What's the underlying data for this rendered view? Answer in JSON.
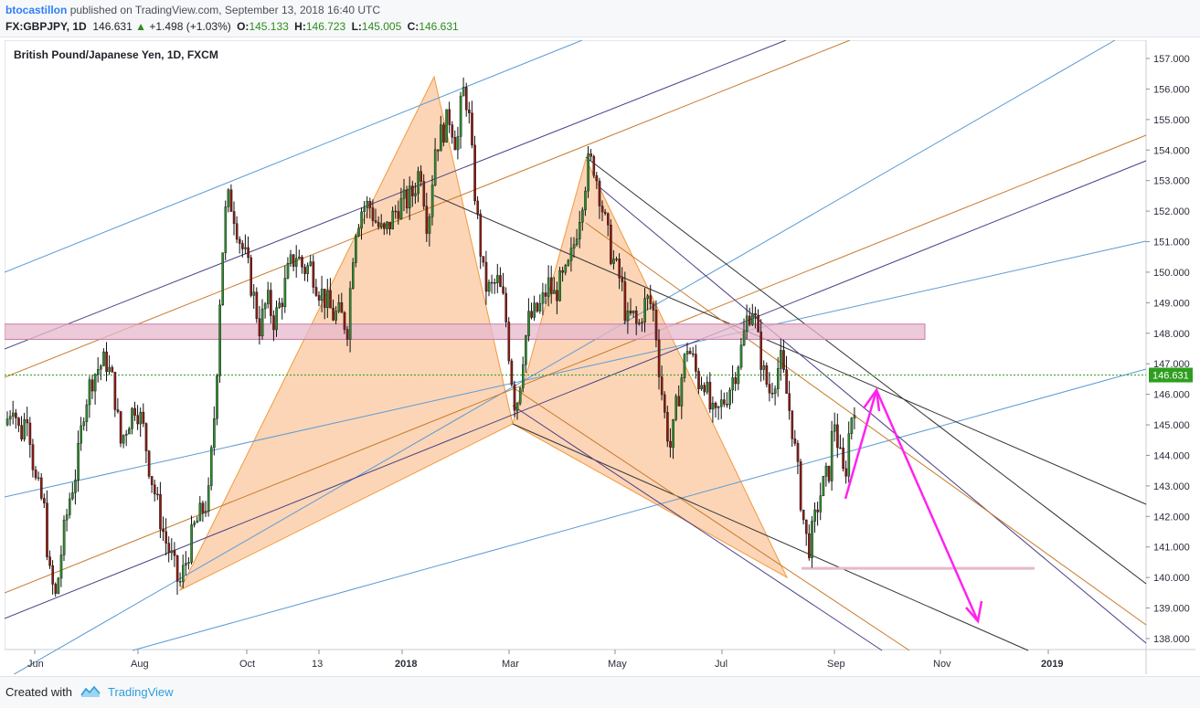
{
  "header": {
    "author": "btocastillon",
    "published_text": "published on TradingView.com, September 13, 2018 16:40 UTC",
    "symbol": "FX:GBPJPY, 1D",
    "last": "146.631",
    "change_arrow": "▲",
    "change": "+1.498 (+1.03%)",
    "open_label": "O:",
    "open": "145.133",
    "high_label": "H:",
    "high": "146.723",
    "low_label": "L:",
    "low": "145.005",
    "close_label": "C:",
    "close": "146.631"
  },
  "chart_data": {
    "type": "candlestick",
    "title": "British Pound/Japanese Yen, 1D, FXCM",
    "ylim": [
      137.6,
      157.3
    ],
    "y_ticks": [
      "157.000",
      "156.000",
      "155.000",
      "154.000",
      "153.000",
      "152.000",
      "151.000",
      "150.000",
      "149.000",
      "148.000",
      "147.000",
      "146.000",
      "145.000",
      "144.000",
      "143.000",
      "142.000",
      "141.000",
      "140.000",
      "139.000",
      "138.000"
    ],
    "x_ticks": [
      {
        "label": "Jun",
        "bold": false
      },
      {
        "label": "Aug",
        "bold": false
      },
      {
        "label": "Oct",
        "bold": false
      },
      {
        "label": "13",
        "bold": false
      },
      {
        "label": "2018",
        "bold": true
      },
      {
        "label": "Mar",
        "bold": false
      },
      {
        "label": "May",
        "bold": false
      },
      {
        "label": "Jul",
        "bold": false
      },
      {
        "label": "Sep",
        "bold": false
      },
      {
        "label": "Nov",
        "bold": false
      },
      {
        "label": "2019",
        "bold": true
      }
    ],
    "last_price_label": "146.631",
    "last_price": 146.631,
    "price_path": [
      [
        0,
        145.0
      ],
      [
        8,
        145.8
      ],
      [
        16,
        144.6
      ],
      [
        24,
        145.5
      ],
      [
        32,
        143.2
      ],
      [
        42,
        142.3
      ],
      [
        48,
        140.1
      ],
      [
        55,
        139.3
      ],
      [
        62,
        141.1
      ],
      [
        70,
        142.6
      ],
      [
        78,
        143.6
      ],
      [
        86,
        145.6
      ],
      [
        94,
        146.5
      ],
      [
        102,
        146.9
      ],
      [
        110,
        147.1
      ],
      [
        118,
        146.3
      ],
      [
        126,
        144.4
      ],
      [
        134,
        145.1
      ],
      [
        142,
        145.7
      ],
      [
        150,
        145.0
      ],
      [
        158,
        143.5
      ],
      [
        166,
        142.4
      ],
      [
        174,
        141.3
      ],
      [
        182,
        140.6
      ],
      [
        190,
        139.7
      ],
      [
        198,
        140.6
      ],
      [
        206,
        141.6
      ],
      [
        214,
        142.1
      ],
      [
        222,
        142.6
      ],
      [
        230,
        146.0
      ],
      [
        236,
        150.2
      ],
      [
        242,
        152.4
      ],
      [
        248,
        152.2
      ],
      [
        256,
        151.1
      ],
      [
        264,
        150.3
      ],
      [
        270,
        149.4
      ],
      [
        278,
        148.2
      ],
      [
        286,
        149.1
      ],
      [
        294,
        148.4
      ],
      [
        302,
        149.1
      ],
      [
        310,
        150.1
      ],
      [
        318,
        150.6
      ],
      [
        326,
        150.1
      ],
      [
        334,
        150.2
      ],
      [
        342,
        149.5
      ],
      [
        350,
        149.1
      ],
      [
        358,
        148.6
      ],
      [
        366,
        148.6
      ],
      [
        374,
        148.2
      ],
      [
        382,
        151.4
      ],
      [
        390,
        152.1
      ],
      [
        398,
        152.2
      ],
      [
        406,
        151.6
      ],
      [
        414,
        151.2
      ],
      [
        422,
        151.7
      ],
      [
        430,
        152.2
      ],
      [
        438,
        152.3
      ],
      [
        446,
        152.6
      ],
      [
        454,
        153.5
      ],
      [
        462,
        151.4
      ],
      [
        470,
        154.1
      ],
      [
        478,
        154.6
      ],
      [
        486,
        155.1
      ],
      [
        494,
        154.1
      ],
      [
        500,
        156.0
      ],
      [
        506,
        155.5
      ],
      [
        512,
        153.1
      ],
      [
        518,
        151.2
      ],
      [
        524,
        149.6
      ],
      [
        530,
        149.4
      ],
      [
        538,
        149.7
      ],
      [
        546,
        148.9
      ],
      [
        552,
        147.0
      ],
      [
        558,
        145.5
      ],
      [
        562,
        146.2
      ],
      [
        566,
        147.3
      ],
      [
        572,
        148.4
      ],
      [
        578,
        148.6
      ],
      [
        586,
        148.9
      ],
      [
        594,
        149.6
      ],
      [
        600,
        149.2
      ],
      [
        606,
        149.6
      ],
      [
        614,
        149.9
      ],
      [
        620,
        150.6
      ],
      [
        626,
        151.6
      ],
      [
        632,
        152.6
      ],
      [
        638,
        153.6
      ],
      [
        644,
        153.5
      ],
      [
        650,
        152.6
      ],
      [
        656,
        151.6
      ],
      [
        662,
        150.7
      ],
      [
        668,
        150.1
      ],
      [
        674,
        149.6
      ],
      [
        680,
        148.3
      ],
      [
        686,
        148.6
      ],
      [
        692,
        148.1
      ],
      [
        698,
        148.9
      ],
      [
        704,
        149.1
      ],
      [
        710,
        148.6
      ],
      [
        716,
        146.6
      ],
      [
        722,
        145.1
      ],
      [
        728,
        144.2
      ],
      [
        734,
        145.6
      ],
      [
        740,
        146.6
      ],
      [
        746,
        147.6
      ],
      [
        752,
        147.1
      ],
      [
        758,
        146.4
      ],
      [
        764,
        146.6
      ],
      [
        770,
        145.6
      ],
      [
        776,
        145.1
      ],
      [
        782,
        145.6
      ],
      [
        788,
        145.9
      ],
      [
        794,
        146.4
      ],
      [
        800,
        146.9
      ],
      [
        806,
        147.6
      ],
      [
        812,
        148.6
      ],
      [
        818,
        148.9
      ],
      [
        824,
        147.6
      ],
      [
        830,
        146.6
      ],
      [
        836,
        146.1
      ],
      [
        842,
        146.6
      ],
      [
        848,
        147.1
      ],
      [
        854,
        146.1
      ],
      [
        860,
        145.1
      ],
      [
        866,
        143.6
      ],
      [
        872,
        142.1
      ],
      [
        878,
        140.9
      ],
      [
        884,
        141.6
      ],
      [
        890,
        142.6
      ],
      [
        896,
        143.1
      ],
      [
        902,
        143.6
      ],
      [
        906,
        145.4
      ],
      [
        912,
        144.1
      ],
      [
        918,
        143.1
      ],
      [
        924,
        145.1
      ],
      [
        930,
        145.9
      ],
      [
        934,
        146.6
      ]
    ],
    "overlays": {
      "supply_zone_price": [
        147.8,
        148.3
      ],
      "support_zone_price": 140.3
    }
  },
  "footer": {
    "created_with": "Created with",
    "brand": "TradingView"
  },
  "colors": {
    "up": "#26a69a",
    "down": "#8b1b12",
    "pattern_fill": "#f7b27a",
    "zone_fill": "#e6b8cc",
    "arrow": "#ff22ee",
    "last_price": "#2e9e1e"
  }
}
